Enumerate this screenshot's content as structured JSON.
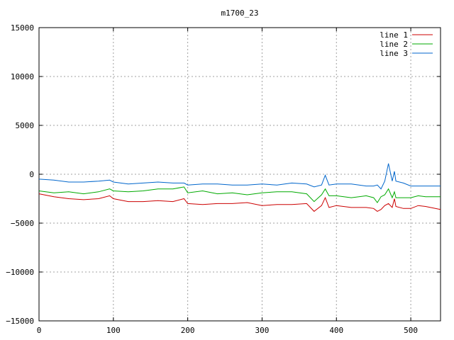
{
  "chart_data": {
    "type": "line",
    "title": "m1700_23",
    "xlabel": "",
    "ylabel": "",
    "xlim": [
      0,
      540
    ],
    "ylim": [
      -15000,
      15000
    ],
    "xticks": [
      0,
      100,
      200,
      300,
      400,
      500
    ],
    "yticks": [
      -15000,
      -10000,
      -5000,
      0,
      5000,
      10000,
      15000
    ],
    "x_tick_labels": [
      "0",
      "100",
      "200",
      "300",
      "400",
      "500"
    ],
    "y_tick_labels": [
      "−15000",
      "−10000",
      "−5000",
      "0",
      "5000",
      "10000",
      "15000"
    ],
    "grid": true,
    "legend_position": "top-right",
    "x": [
      0,
      20,
      40,
      60,
      80,
      95,
      100,
      120,
      140,
      160,
      180,
      195,
      200,
      220,
      240,
      260,
      280,
      300,
      320,
      340,
      360,
      370,
      380,
      385,
      390,
      400,
      420,
      440,
      450,
      455,
      460,
      465,
      470,
      475,
      478,
      480,
      490,
      500,
      510,
      520,
      540
    ],
    "series": [
      {
        "name": "line 1",
        "color": "#cc0000",
        "values": [
          -2000,
          -2300,
          -2500,
          -2600,
          -2500,
          -2200,
          -2500,
          -2800,
          -2800,
          -2700,
          -2800,
          -2500,
          -3000,
          -3100,
          -3000,
          -3000,
          -2900,
          -3200,
          -3100,
          -3100,
          -3000,
          -3800,
          -3200,
          -2400,
          -3400,
          -3200,
          -3400,
          -3400,
          -3500,
          -3800,
          -3600,
          -3200,
          -3000,
          -3400,
          -2500,
          -3300,
          -3500,
          -3500,
          -3200,
          -3300,
          -3600
        ]
      },
      {
        "name": "line 2",
        "color": "#00aa00",
        "values": [
          -1700,
          -1900,
          -1800,
          -2000,
          -1800,
          -1500,
          -1700,
          -1800,
          -1700,
          -1500,
          -1500,
          -1300,
          -1900,
          -1700,
          -2000,
          -1900,
          -2100,
          -1900,
          -1800,
          -1800,
          -2000,
          -2800,
          -2100,
          -1500,
          -2200,
          -2200,
          -2400,
          -2200,
          -2400,
          -2900,
          -2300,
          -2100,
          -1500,
          -2400,
          -1800,
          -2400,
          -2400,
          -2400,
          -2200,
          -2300,
          -2300
        ]
      },
      {
        "name": "line 3",
        "color": "#0066cc",
        "values": [
          -500,
          -600,
          -800,
          -800,
          -700,
          -600,
          -800,
          -1000,
          -900,
          -800,
          -900,
          -900,
          -1100,
          -1000,
          -1000,
          -1100,
          -1100,
          -1000,
          -1100,
          -900,
          -1000,
          -1300,
          -1100,
          -100,
          -1100,
          -1000,
          -1000,
          -1200,
          -1200,
          -1100,
          -1500,
          -700,
          1100,
          -700,
          300,
          -700,
          -900,
          -1200,
          -1200,
          -1200,
          -1200
        ]
      }
    ]
  }
}
